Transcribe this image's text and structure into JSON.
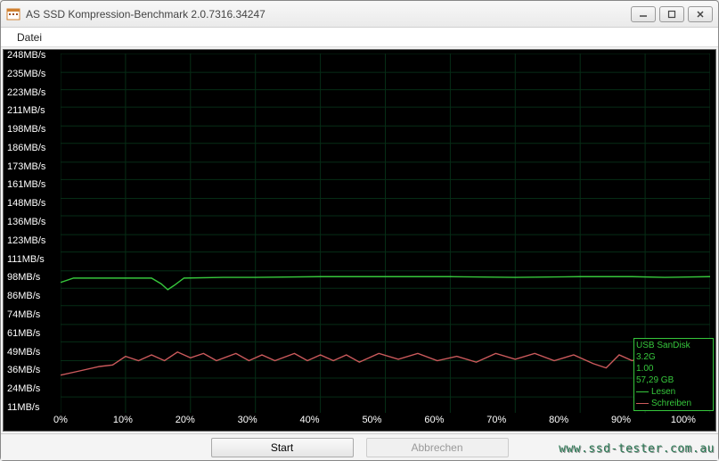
{
  "window": {
    "title": "AS SSD Kompression-Benchmark 2.0.7316.34247"
  },
  "menu": {
    "file": "Datei"
  },
  "chart": {
    "type": "line",
    "y_unit_suffix": "MB/s",
    "y_ticks": [
      248,
      235,
      223,
      211,
      198,
      186,
      173,
      161,
      148,
      136,
      123,
      111,
      98,
      86,
      74,
      61,
      49,
      36,
      24,
      11
    ],
    "y_max": 248,
    "y_min": 0,
    "x_ticks_percent": [
      0,
      10,
      20,
      30,
      40,
      50,
      60,
      70,
      80,
      90,
      100
    ],
    "background_color": "#000000",
    "grid_color": "#062d16",
    "text_color": "#ffffff",
    "label_fontsize": 11,
    "series": {
      "read": {
        "label": "Lesen",
        "color": "#36c73c",
        "points_percent": [
          [
            0,
            90
          ],
          [
            2,
            93
          ],
          [
            5,
            93
          ],
          [
            10,
            93
          ],
          [
            14,
            93
          ],
          [
            15.5,
            89
          ],
          [
            16.5,
            85
          ],
          [
            17.5,
            88
          ],
          [
            19,
            93
          ],
          [
            25,
            93.5
          ],
          [
            30,
            93.5
          ],
          [
            40,
            94
          ],
          [
            50,
            94
          ],
          [
            60,
            94
          ],
          [
            70,
            93.5
          ],
          [
            80,
            94
          ],
          [
            88,
            94
          ],
          [
            93,
            93.5
          ],
          [
            100,
            94
          ]
        ]
      },
      "write": {
        "label": "Schreiben",
        "color": "#cc5a5c",
        "points_percent": [
          [
            0,
            26
          ],
          [
            3,
            29
          ],
          [
            6,
            32
          ],
          [
            8,
            33
          ],
          [
            10,
            39
          ],
          [
            12,
            36
          ],
          [
            14,
            40
          ],
          [
            16,
            36
          ],
          [
            18,
            42
          ],
          [
            20,
            38
          ],
          [
            22,
            41
          ],
          [
            24,
            36
          ],
          [
            27,
            41
          ],
          [
            29,
            36
          ],
          [
            31,
            40
          ],
          [
            33,
            36
          ],
          [
            36,
            41
          ],
          [
            38,
            36
          ],
          [
            40,
            40
          ],
          [
            42,
            36
          ],
          [
            44,
            40
          ],
          [
            46,
            35
          ],
          [
            49,
            41
          ],
          [
            52,
            37
          ],
          [
            55,
            41
          ],
          [
            58,
            36
          ],
          [
            61,
            39
          ],
          [
            64,
            35
          ],
          [
            67,
            41
          ],
          [
            70,
            37
          ],
          [
            73,
            41
          ],
          [
            76,
            36
          ],
          [
            79,
            40
          ],
          [
            82,
            34
          ],
          [
            84,
            31
          ],
          [
            86,
            40
          ],
          [
            88,
            36
          ],
          [
            91,
            41
          ],
          [
            94,
            36
          ],
          [
            97,
            41
          ],
          [
            100,
            37
          ]
        ]
      }
    }
  },
  "info_panel": {
    "line1": "USB",
    "line1b": "SanDisk 3.2G",
    "line2": "1.00",
    "line3": "57,29 GB",
    "legend_read": "Lesen",
    "legend_write": "Schreiben",
    "border_color": "#36c73c",
    "text_color": "#36c73c"
  },
  "buttons": {
    "start": "Start",
    "abort": "Abbrechen"
  },
  "watermark": "www.ssd-tester.com.au"
}
